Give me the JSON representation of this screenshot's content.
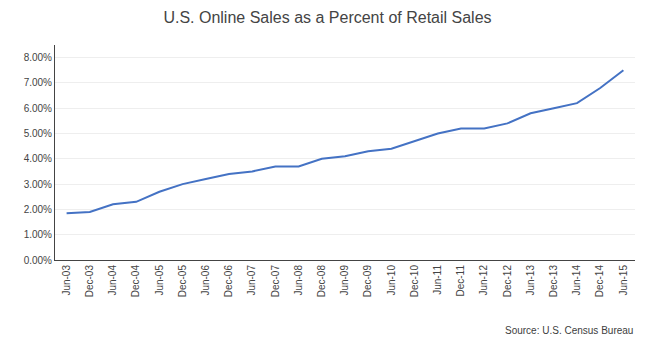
{
  "chart_data": {
    "type": "line",
    "title": "U.S. Online Sales as a Percent of Retail Sales",
    "annotations": [
      "Source: U.S. Census Bureau"
    ],
    "categories": [
      "Jun-03",
      "Dec-03",
      "Jun-04",
      "Dec-04",
      "Jun-05",
      "Dec-05",
      "Jun-06",
      "Dec-06",
      "Jun-07",
      "Dec-07",
      "Jun-08",
      "Dec-08",
      "Jun-09",
      "Dec-09",
      "Jun-10",
      "Dec-10",
      "Jun-11",
      "Dec-11",
      "Jun-12",
      "Dec-12",
      "Jun-13",
      "Dec-13",
      "Jun-14",
      "Dec-14",
      "Jun-15"
    ],
    "values": [
      0.0185,
      0.019,
      0.022,
      0.023,
      0.027,
      0.03,
      0.032,
      0.034,
      0.035,
      0.037,
      0.037,
      0.04,
      0.041,
      0.043,
      0.044,
      0.047,
      0.05,
      0.052,
      0.052,
      0.054,
      0.058,
      0.06,
      0.062,
      0.068,
      0.075
    ],
    "color": "#4472C4",
    "ylim": [
      0.0,
      0.085
    ],
    "yticks": [
      {
        "value": 0.0,
        "label": "0.00%"
      },
      {
        "value": 0.01,
        "label": "1.00%"
      },
      {
        "value": 0.02,
        "label": "2.00%"
      },
      {
        "value": 0.03,
        "label": "3.00%"
      },
      {
        "value": 0.04,
        "label": "4.00%"
      },
      {
        "value": 0.05,
        "label": "5.00%"
      },
      {
        "value": 0.06,
        "label": "6.00%"
      },
      {
        "value": 0.07,
        "label": "7.00%"
      },
      {
        "value": 0.08,
        "label": "8.00%"
      }
    ],
    "grid": true
  }
}
